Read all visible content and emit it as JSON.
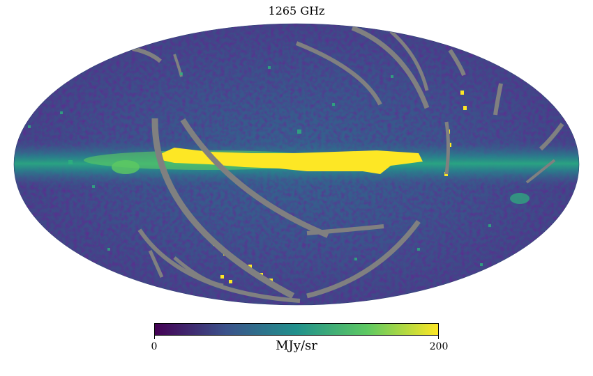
{
  "title": "1265 GHz",
  "colorbar": {
    "min_label": "0",
    "max_label": "200",
    "unit": "MJy/sr",
    "colormap": [
      "#440154",
      "#3b528b",
      "#21918c",
      "#5ec962",
      "#fde725"
    ],
    "range": [
      0,
      200
    ]
  },
  "map": {
    "projection": "mollweide",
    "masked_color": "#808080",
    "background_color": "#3d4c89"
  }
}
